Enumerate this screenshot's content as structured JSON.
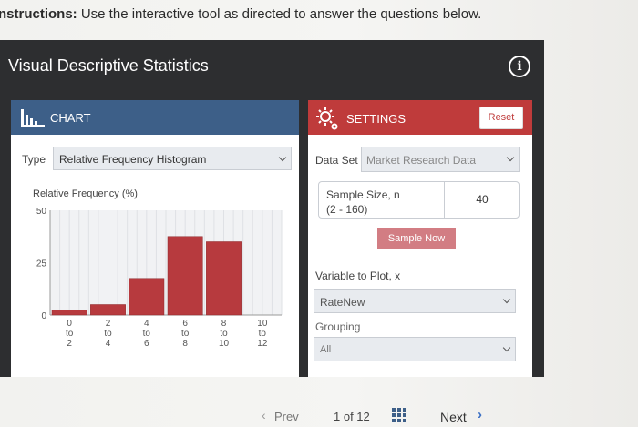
{
  "instructions": {
    "bold": "nstructions:",
    "text": " Use the interactive tool as directed to answer the questions below."
  },
  "app": {
    "title": "Visual Descriptive Statistics",
    "info_icon": "info-icon"
  },
  "chart_panel": {
    "header": "CHART",
    "type_label": "Type",
    "type_value": "Relative Frequency Histogram"
  },
  "settings": {
    "header": "SETTINGS",
    "reset": "Reset",
    "dataset_label": "Data Set",
    "dataset_value": "Market Research Data",
    "sample_size_label": "Sample Size, n",
    "sample_size_range": "(2 - 160)",
    "sample_size_value": "40",
    "sample_now": "Sample Now",
    "variable_label": "Variable to Plot, x",
    "variable_value": "RateNew",
    "grouping_label": "Grouping",
    "grouping_value": "All"
  },
  "nav": {
    "prev": "Prev",
    "page": "1 of 12",
    "next": "Next"
  },
  "colors": {
    "bar": "#b73a3e",
    "chart_header": "#3d5f88",
    "settings_header": "#bf3b3b"
  },
  "chart_data": {
    "type": "bar",
    "ylabel": "Relative Frequency (%)",
    "ylim": [
      0,
      50
    ],
    "yticks": [
      "0",
      "25",
      "50"
    ],
    "categories": [
      {
        "from": "0",
        "to": "2"
      },
      {
        "from": "2",
        "to": "4"
      },
      {
        "from": "4",
        "to": "6"
      },
      {
        "from": "6",
        "to": "8"
      },
      {
        "from": "8",
        "to": "10"
      },
      {
        "from": "10",
        "to": "12"
      }
    ],
    "values": [
      2.5,
      5,
      17.5,
      37.5,
      35,
      0
    ],
    "grid": true
  }
}
